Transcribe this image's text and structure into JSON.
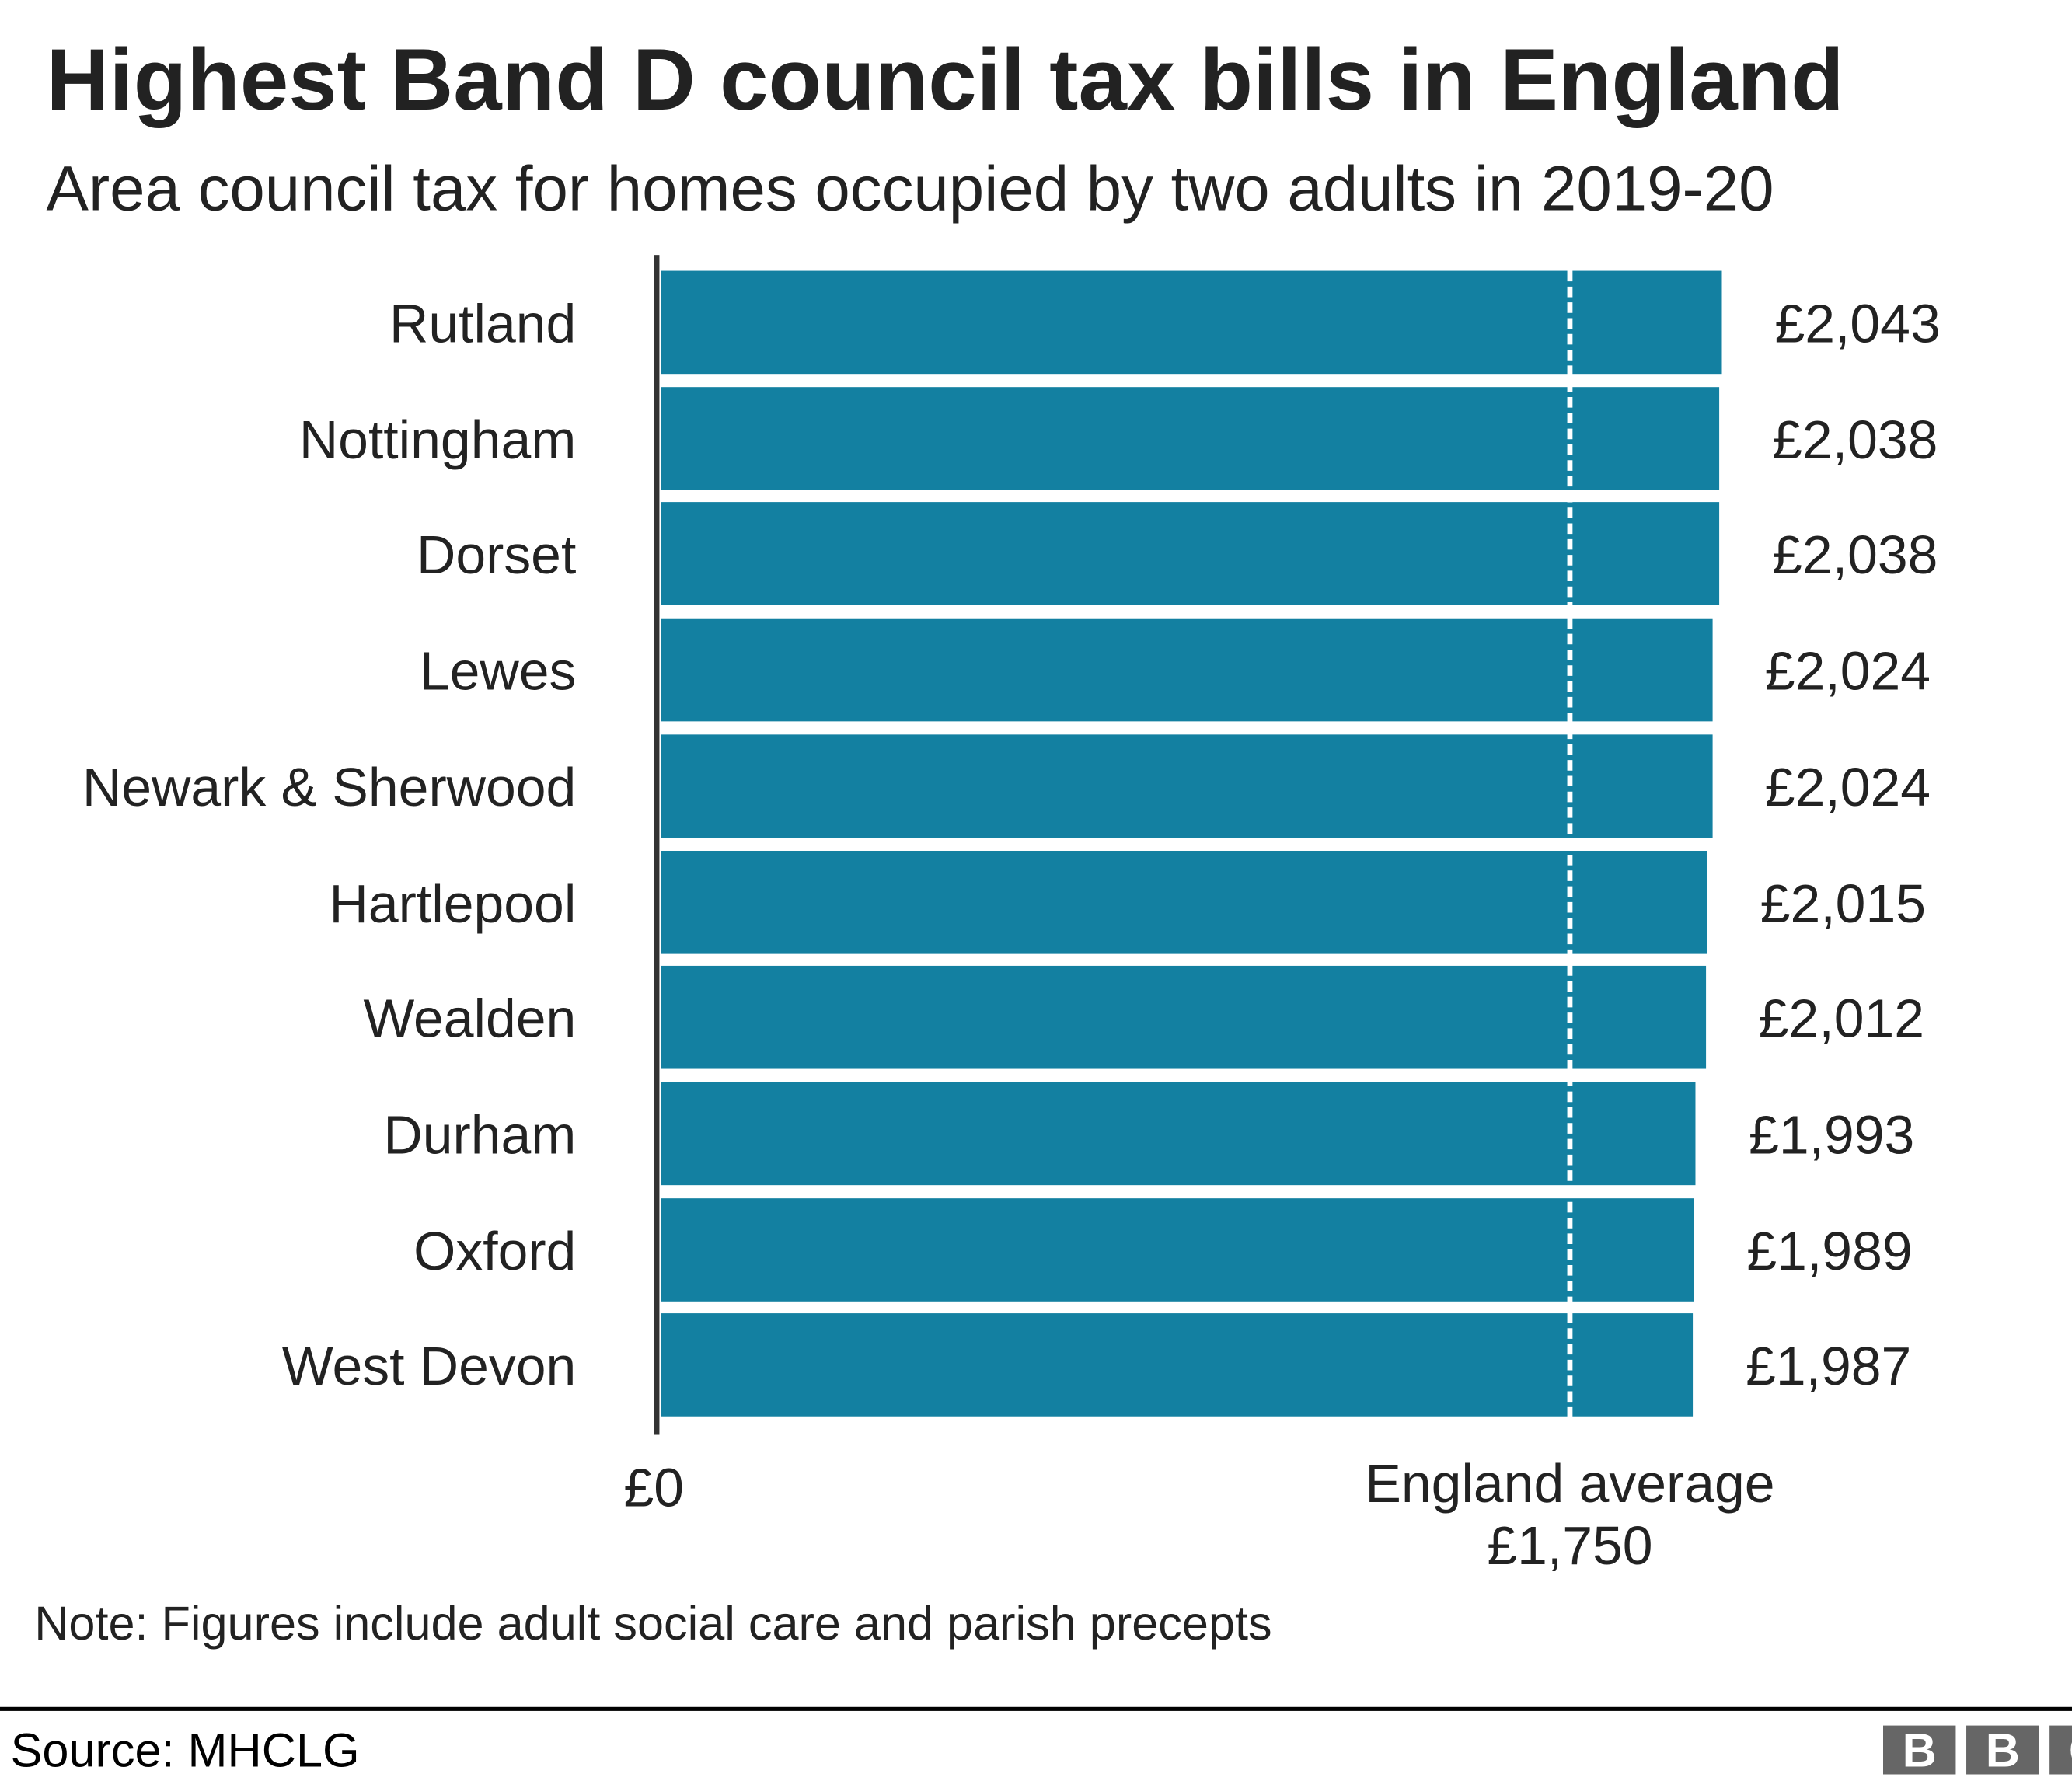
{
  "chart_data": {
    "type": "bar",
    "orientation": "horizontal",
    "title": "Highest Band D council tax bills in England",
    "subtitle": "Area council tax for homes occupied by two adults in 2019-20",
    "categories": [
      "Rutland",
      "Nottingham",
      "Dorset",
      "Lewes",
      "Newark & Sherwood",
      "Hartlepool",
      "Wealden",
      "Durham",
      "Oxford",
      "West Devon"
    ],
    "values": [
      2043,
      2038,
      2038,
      2024,
      2024,
      2015,
      2012,
      1993,
      1989,
      1987
    ],
    "value_labels": [
      "£2,043",
      "£2,038",
      "£2,038",
      "£2,024",
      "£2,024",
      "£2,015",
      "£2,012",
      "£1,993",
      "£1,989",
      "£1,987"
    ],
    "xlim": [
      0,
      2043
    ],
    "x_tick_label": "£0",
    "reference_line": {
      "value": 1750,
      "label": "England average",
      "value_label": "£1,750",
      "style": "dashed",
      "color": "#ffffff"
    },
    "bar_color": "#1380a1",
    "grid": false,
    "note": "Note: Figures include adult social care and parish precepts",
    "source": "Source: MHCLG"
  },
  "logo": {
    "text": "BBC",
    "letters": [
      "B",
      "B",
      "C"
    ]
  }
}
